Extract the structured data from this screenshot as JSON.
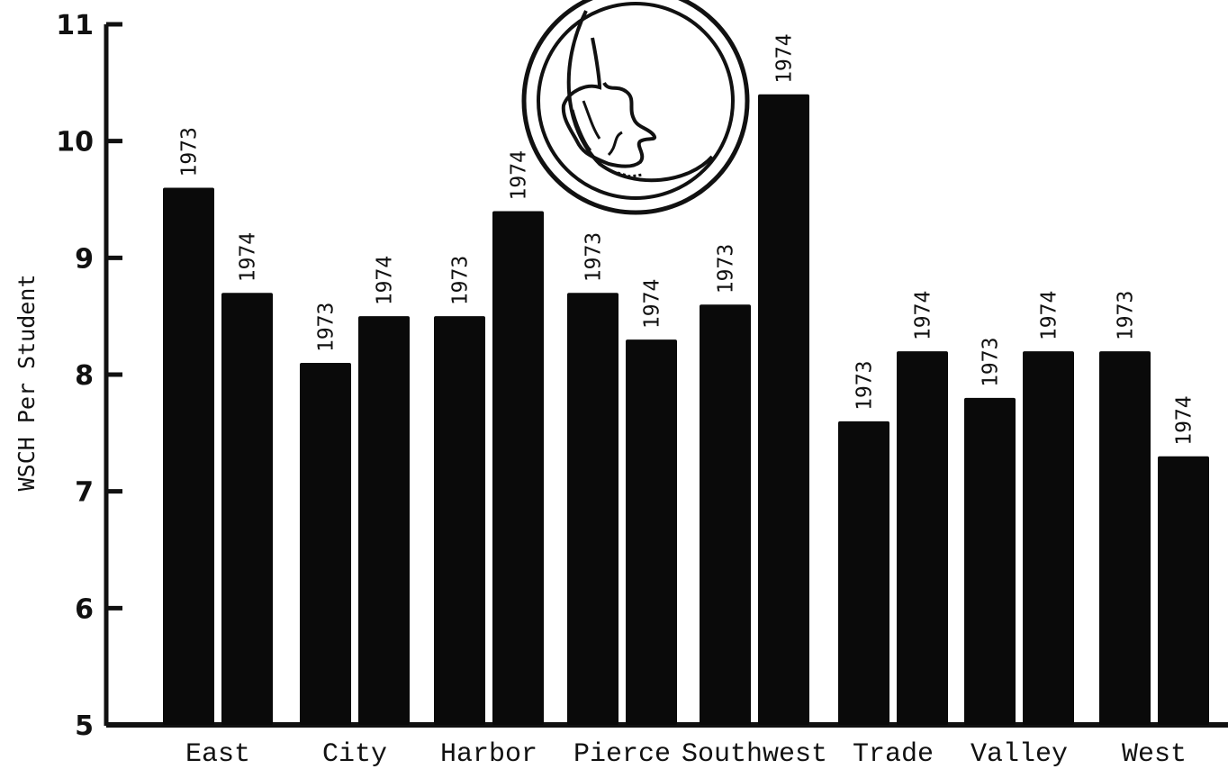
{
  "chart_data": {
    "type": "bar",
    "ylabel": "WSCH Per Student",
    "xlabel": "",
    "title": "",
    "ylim": [
      5,
      11
    ],
    "yticks": [
      "5",
      "6",
      "7",
      "8",
      "9",
      "10",
      "11"
    ],
    "categories": [
      "East",
      "City",
      "Harbor",
      "Pierce",
      "Southwest",
      "Trade",
      "Valley",
      "West"
    ],
    "series": [
      {
        "name": "1973",
        "values": [
          9.6,
          8.1,
          8.5,
          8.7,
          8.6,
          7.6,
          7.8,
          8.2
        ]
      },
      {
        "name": "1974",
        "values": [
          8.7,
          8.5,
          9.4,
          8.3,
          10.4,
          8.2,
          8.2,
          7.3
        ]
      }
    ],
    "bar_labels": [
      "1973",
      "1974"
    ],
    "color": "#0a0a0a",
    "grid": false,
    "legend": "none",
    "logo": {
      "icon": "profile-head-in-circle-logo"
    }
  }
}
